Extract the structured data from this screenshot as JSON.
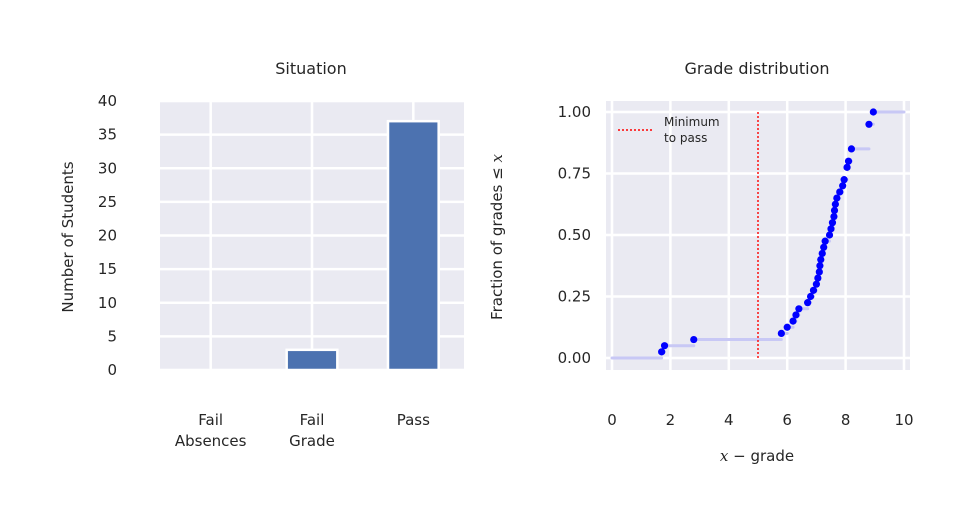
{
  "chart_data": [
    {
      "type": "bar",
      "title": "Situation",
      "categories": [
        [
          "Fail",
          "Absences"
        ],
        [
          "Fail",
          "Grade"
        ],
        [
          "Pass"
        ]
      ],
      "values": [
        0,
        3,
        37
      ],
      "xlabel": "",
      "ylabel": "Number of Students",
      "ylim": [
        0,
        40
      ],
      "yticks": [
        0,
        5,
        10,
        15,
        20,
        25,
        30,
        35,
        40
      ],
      "bar_color": "#4c72b0",
      "background": "#eaeaf2",
      "grid": true
    },
    {
      "type": "scatter",
      "title": "Grade distribution",
      "xlabel_math": "x",
      "xlabel_text": " − grade",
      "ylabel_text": "Fraction of grades ≤ ",
      "ylabel_math": "x",
      "xlim": [
        0,
        10
      ],
      "ylim": [
        0,
        1
      ],
      "xticks": [
        "0",
        "2",
        "4",
        "6",
        "8",
        "10"
      ],
      "xtick_values": [
        0,
        2,
        4,
        6,
        8,
        10
      ],
      "yticks": [
        "0.00",
        "0.25",
        "0.50",
        "0.75",
        "1.00"
      ],
      "ytick_values": [
        0,
        0.25,
        0.5,
        0.75,
        1.0
      ],
      "point_color": "#0000ff",
      "step_color": "#c8c8f5",
      "threshold_color": "#ff0000",
      "background": "#eaeaf2",
      "threshold_x": 5.0,
      "legend": {
        "line1": "Minimum",
        "line2": "to pass",
        "position": "top-left"
      },
      "grades": [
        1.7,
        1.8,
        2.8,
        5.8,
        6.0,
        6.2,
        6.3,
        6.4,
        6.7,
        6.8,
        6.9,
        7.0,
        7.05,
        7.1,
        7.12,
        7.15,
        7.2,
        7.25,
        7.3,
        7.45,
        7.5,
        7.55,
        7.6,
        7.62,
        7.65,
        7.7,
        7.8,
        7.9,
        7.95,
        8.05,
        8.1,
        8.2,
        8.8,
        8.95
      ],
      "fractions": [
        0.025,
        0.05,
        0.075,
        0.1,
        0.125,
        0.15,
        0.175,
        0.2,
        0.225,
        0.25,
        0.275,
        0.3,
        0.325,
        0.35,
        0.375,
        0.4,
        0.425,
        0.45,
        0.475,
        0.5,
        0.525,
        0.55,
        0.575,
        0.6,
        0.625,
        0.65,
        0.675,
        0.7,
        0.725,
        0.775,
        0.8,
        0.85,
        0.95,
        1.0
      ]
    }
  ]
}
